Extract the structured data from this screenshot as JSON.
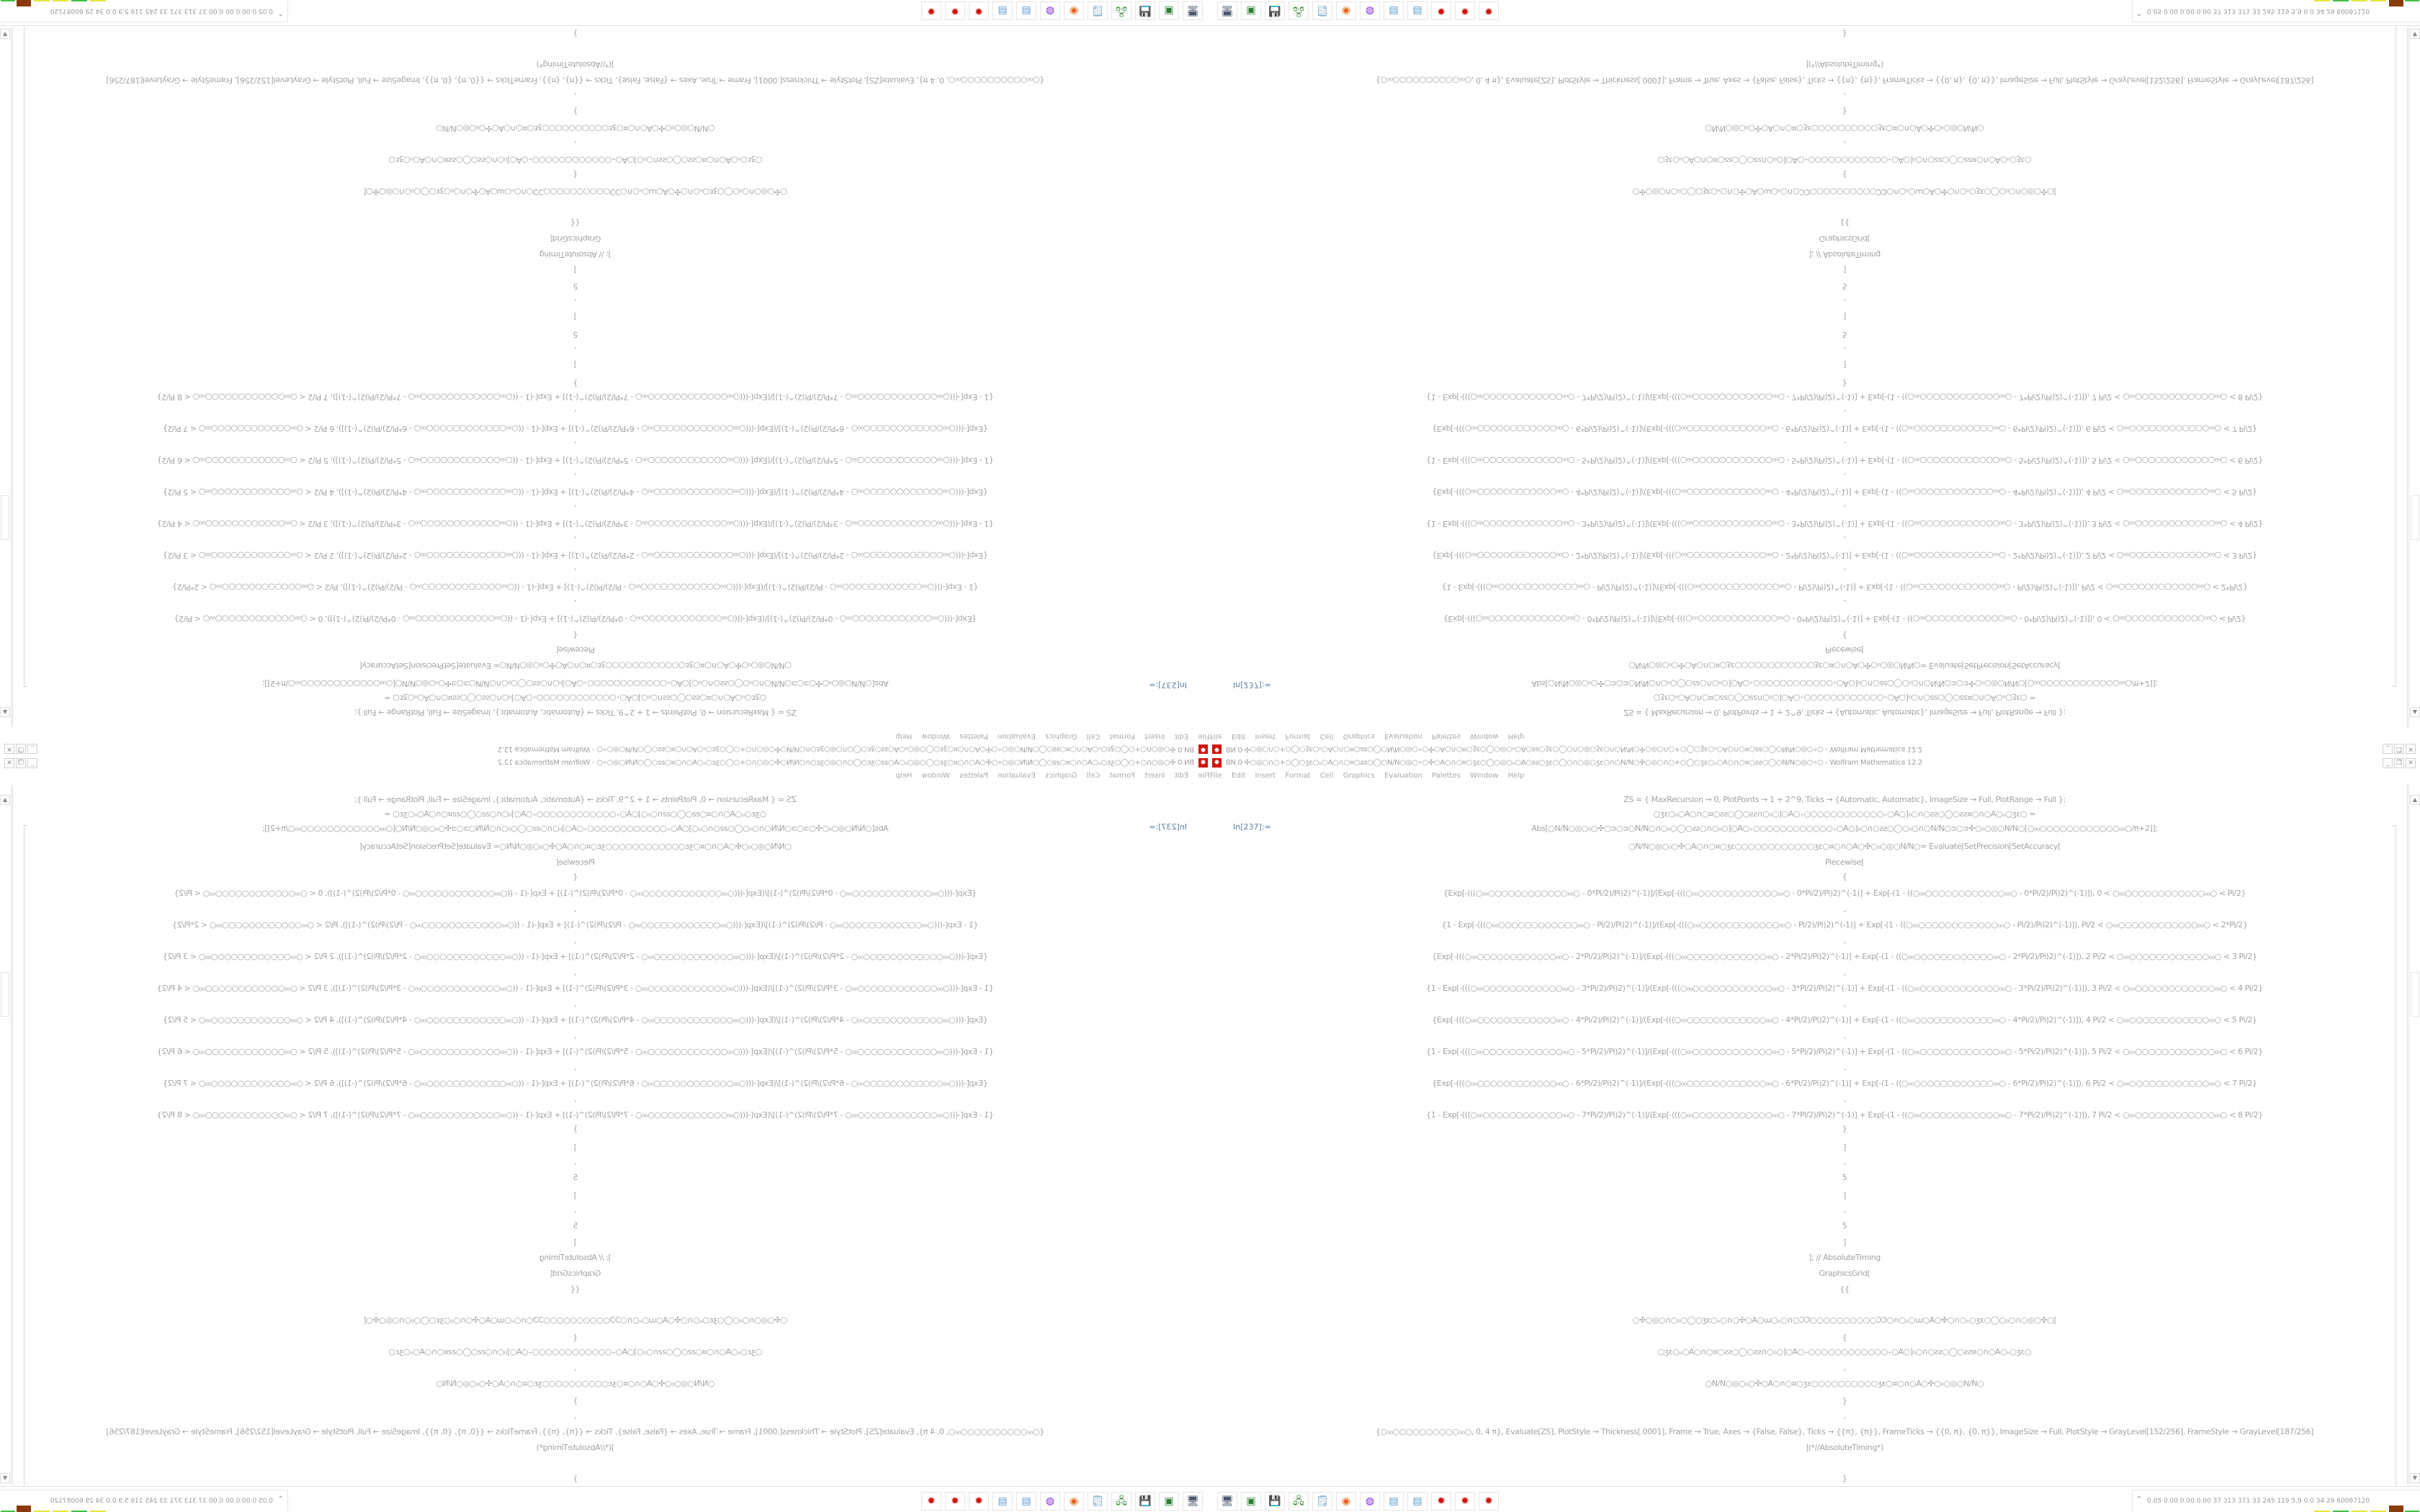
{
  "window": {
    "title": "BN.0 ✣○◎○∩○+○◯○ʒɛ○ₒ○A○∩○¤○ƨƨ○◯○Ν/Ν○◎○∘○✣○A○∩○¤○ʒɛ○◯○◎○ₒ○A○ƨƨ○ʒɛ○◯○∩○◎○ʒɛ○∩○Ν/Ν○✣○◎○∩○+○◯○ʒɛ○ₒ○A○∩○¤○ƨƨ○◯○Ν/Ν○◎○∘○ - Wolfram Mathematica 12.2",
    "app_icon": "mathematica-icon",
    "minimize": "_",
    "maximize": "❐",
    "close": "✕"
  },
  "menu": [
    "File",
    "Edit",
    "Insert",
    "Format",
    "Cell",
    "Graphics",
    "Evaluation",
    "Palettes",
    "Window",
    "Help"
  ],
  "notebook": {
    "cell_label": "In[237]:=",
    "lines": [
      "ZS = {   MaxRecursion → 0, PlotPoints → 1 + 2^9, Ticks → {Automatic, Automatic}, ImageSize → Full, PlotRange → Full   };",
      "○ʒɛ○ₒ○A○∩○¤○ƨƨ○◯○ƨƨ∩○₀○]○A○₊○○○○○○○○○○○○₊○A○]₀○∩○ƨƨ○◯○ƨƨ¤○∩○A○ₒ○ʒɛ○  =",
      "Abs[○Ν/Ν○◎○₀○✣○ᴝ○ᴝ○Ν/Ν○∩○₀○◯○ƨƨ○∩○₀○]○A○₊○○○○○○○○○○○○₊○A○]₀○∩○ƨƨ○◯○₀○∩○Ν/Ν○ᴝ○ᴝ✣○₀○◎○Ν/Ν○[○₀₀○○○○○○○○○○○○₀₀○/π+2]];",
      "○Ν/Ν○◎○₀○✣○A○∩○¤○ʒɛ○○○○○○○○○○○○ʒɛ○¤○∩○A○✣○₀○◎○Ν/Ν○= Evaluate[SetPrecision[SetAccuracy[",
      "Piecewise[",
      "{",
      "{Exp[-(((○₀₀○○○○○○○○○○○○₀₀○ - 0*Pi/2)/Pi)2)^(-1)]/(Exp[-(((○₀₀○○○○○○○○○○○○₀₀○ - 0*Pi/2)/Pi)2)^(-1)] + Exp[-(1 - ((○₀₀○○○○○○○○○○○○₀₀○ - 0*Pi/2)/Pi)2)^(-1)]), 0 < ○₀₀○○○○○○○○○○○○₀₀○ < Pi/2}",
      ",",
      "{1 - Exp[-(((○₀₀○○○○○○○○○○○○₀₀○ - Pi/2)/Pi)2)^(-1)]/(Exp[-(((○₀₀○○○○○○○○○○○○₀₀○ - Pi/2)/Pi)2)^(-1)] + Exp[-(1 - ((○₀₀○○○○○○○○○○○○₀₀○ - Pi/2)/Pi)2)^(-1)]), Pi/2 < ○₀₀○○○○○○○○○○○○₀₀○ < 2*Pi/2}",
      ",",
      "{Exp[-(((○₀₀○○○○○○○○○○○○₀₀○ - 2*Pi/2)/Pi)2)^(-1)]/(Exp[-(((○₀₀○○○○○○○○○○○○₀₀○ - 2*Pi/2)/Pi)2)^(-1)] + Exp[-(1 - ((○₀₀○○○○○○○○○○○○₀₀○ - 2*Pi/2)/Pi)2)^(-1)]), 2 Pi/2 < ○₀₀○○○○○○○○○○○○₀₀○ < 3 Pi/2}",
      ",",
      "{1 - Exp[-(((○₀₀○○○○○○○○○○○○₀₀○ - 3*Pi/2)/Pi)2)^(-1)]/(Exp[-(((○₀₀○○○○○○○○○○○○₀₀○ - 3*Pi/2)/Pi)2)^(-1)] + Exp[-(1 - ((○₀₀○○○○○○○○○○○○₀₀○ - 3*Pi/2)/Pi)2)^(-1)]), 3 Pi/2 < ○₀₀○○○○○○○○○○○○₀₀○ < 4 Pi/2}",
      ",",
      "{Exp[-(((○₀₀○○○○○○○○○○○○₀₀○ - 4*Pi/2)/Pi)2)^(-1)]/(Exp[-(((○₀₀○○○○○○○○○○○○₀₀○ - 4*Pi/2)/Pi)2)^(-1)] + Exp[-(1 - ((○₀₀○○○○○○○○○○○○₀₀○ - 4*Pi/2)/Pi)2)^(-1)]), 4 Pi/2 < ○₀₀○○○○○○○○○○○○₀₀○ < 5 Pi/2}",
      ",",
      "{1 - Exp[-(((○₀₀○○○○○○○○○○○○₀₀○ - 5*Pi/2)/Pi)2)^(-1)]/(Exp[-(((○₀₀○○○○○○○○○○○○₀₀○ - 5*Pi/2)/Pi)2)^(-1)] + Exp[-(1 - ((○₀₀○○○○○○○○○○○○₀₀○ - 5*Pi/2)/Pi)2)^(-1)]), 5 Pi/2 < ○₀₀○○○○○○○○○○○○₀₀○ < 6 Pi/2}",
      ",",
      "{Exp[-(((○₀₀○○○○○○○○○○○○₀₀○ - 6*Pi/2)/Pi)2)^(-1)]/(Exp[-(((○₀₀○○○○○○○○○○○○₀₀○ - 6*Pi/2)/Pi)2)^(-1)] + Exp[-(1 - ((○₀₀○○○○○○○○○○○○₀₀○ - 6*Pi/2)/Pi)2)^(-1)]), 6 Pi/2 < ○₀₀○○○○○○○○○○○○₀₀○ < 7 Pi/2}",
      ",",
      "{1 - Exp[-(((○₀₀○○○○○○○○○○○○₀₀○ - 7*Pi/2)/Pi)2)^(-1)]/(Exp[-(((○₀₀○○○○○○○○○○○○₀₀○ - 7*Pi/2)/Pi)2)^(-1)] + Exp[-(1 - ((○₀₀○○○○○○○○○○○○₀₀○ - 7*Pi/2)/Pi)2)^(-1)]), 7 Pi/2 < ○₀₀○○○○○○○○○○○○₀₀○ < 8 Pi/2}",
      "}",
      "]",
      ",",
      "5",
      "]",
      ",",
      "5",
      "]",
      "]; // AbsoluteTiming",
      "GraphicsGrid[",
      "{{",
      "○✣○◎○∩○₀○◯○ʒɛ○ₒ○∩○✣○A○ɯ○ₒ○∩○ƆƆ○○○○○○○○○○ƆƆ○∩○ₒ○ɯ○A○✣○∩○ₒ○ʒɛ○◯○₀○∩○◎○✣○[",
      "{",
      "○ʒɛ○ₒ○A○∩○¤○ƨƨ○◯○ƨƨ∩○₀○]○A○₊○○○○○○○○○○○○₊○A○]₀○∩○ƨƨ○◯○ƨƨ¤○∩○A○ₒ○ʒɛ○",
      ",",
      "○Ν/Ν○◎○₀○✣○A○∩○¤○ʒɛ○○○○○○○○○○ʒɛ○¤○∩○A○✣○₀○◎○Ν/Ν○",
      "}",
      ",",
      "{○₀₀○○○○○○○○○○₀₀○, 0, 4 π}, Evaluate[ZS], PlotStyle → Thickness[.0001], Frame → True, Axes → {False, False}, Ticks → {{π}, {π}}, FrameTicks → {{0, π}, {0, π}}, ImageSize → Full, PlotStyle → GrayLevel[152/256], FrameStyle → GrayLevel[187/256]",
      "](*//AbsoluteTiming*)",
      "}"
    ]
  },
  "taskbar": {
    "icons": [
      {
        "name": "display-settings-icon",
        "glyph": "🖥",
        "color": "#4a5a70"
      },
      {
        "name": "terminal-icon",
        "glyph": "▣",
        "color": "#2e7d32"
      },
      {
        "name": "floppy-64-icon",
        "glyph": "💾",
        "color": "#1a3c9c"
      },
      {
        "name": "network-icon",
        "glyph": "🖧",
        "color": "#3a8a3a"
      },
      {
        "name": "notepad-icon",
        "glyph": "🗒",
        "color": "#6aa0c0"
      },
      {
        "name": "firefox-icon",
        "glyph": "◉",
        "color": "#e8661c"
      },
      {
        "name": "emacs-icon",
        "glyph": "◍",
        "color": "#7a2bd0"
      },
      {
        "name": "calculator-icon",
        "glyph": "▤",
        "color": "#5a9ad0"
      },
      {
        "name": "calculator-icon",
        "glyph": "▤",
        "color": "#5a9ad0"
      },
      {
        "name": "mathematica-icon",
        "glyph": "✹",
        "color": "#d0140f"
      },
      {
        "name": "mathematica-icon",
        "glyph": "✹",
        "color": "#d0140f"
      },
      {
        "name": "mathematica-icon",
        "glyph": "✹",
        "color": "#d0140f"
      }
    ],
    "tray_text": "0.05 0.00 0.00 0.00   37   313   371   33   245   119   5.9   0.0   34   29  60087120",
    "tray_chevron": "⌃"
  },
  "colors": {
    "accent": "#d0140f",
    "code_text": "#a3a3a3",
    "cell_label": "#5a7fa6"
  }
}
